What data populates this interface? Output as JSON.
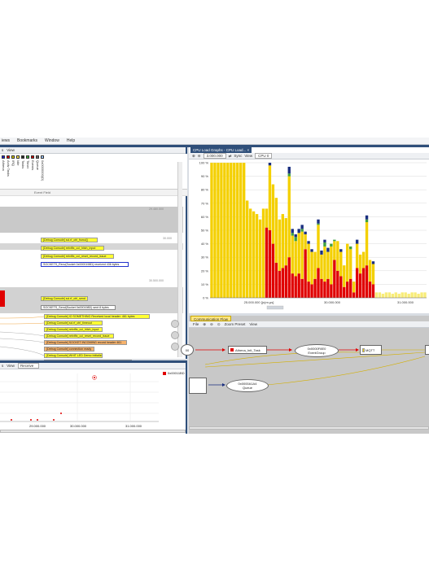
{
  "menu": [
    "iews",
    "Bookmarks",
    "Window",
    "Help"
  ],
  "trace": {
    "toolbar": [
      "s",
      "View"
    ],
    "event_field_label": "Event Field",
    "columns": [
      {
        "color": "#1f1fd6",
        "label": "Athena"
      },
      {
        "color": "#e00000",
        "label": "Activ Tasks"
      },
      {
        "color": "#d4c900",
        "label": "IRQ"
      },
      {
        "color": "#ffe64d",
        "label": "Idle"
      },
      {
        "color": "#2a2a2a",
        "label": "Tasks"
      },
      {
        "color": "#3fae3f",
        "label": "Timer"
      },
      {
        "color": "#cc0000",
        "label": "Events"
      },
      {
        "color": "#6b6b6b",
        "label": "Queue"
      },
      {
        "color": "#9ec9ff",
        "label": "0x0000000(D)"
      }
    ],
    "timestamps": [
      "29.480.500",
      "30.000",
      "30.500.000"
    ],
    "events": [
      "[Debug Console] sci.rf_ctrl_fsmcl()",
      "[Debug Console] retxtftx_cci_hitch_input",
      "[Debug Console] retxtftx_cci_reset_record_issue",
      "SOCKETS_Recv(Socket 0x0000198D) received 436 bytes",
      "[Debug Console] sci.rf_ctrl_send",
      "SOCKETS_Send(Socket 0x000198D) sent 8 bytes",
      "[Debug Console] IO SOMETHING Received local header: 461 bytes",
      "[Debug Console] sci.rf_ctrl_timeout",
      "[Debug Console] retxtftx_cci_hitch_input",
      "[Debug Console] retxtftx_cci_reset_record_issue",
      "[Debug Console] SOCKET INCOMING record header 461",
      "[Debug Console] connection ready",
      "[Debug Console] WHIT LED Demo Initialized",
      "[Debug Console] cci_fsmelt applicationcomm ackch.like(l)"
    ]
  },
  "lowerleft": {
    "toolbar": [
      "s",
      "View"
    ],
    "dropdown": "Receive",
    "legend": "0x00011BD",
    "xticks": [
      "29.000.000",
      "30.000.000",
      "31.000.000"
    ]
  },
  "cpu": {
    "tab_title": "CPU Load Graphs - CPU Load...",
    "zoom_value": "3.000.000",
    "sync_label": "Sync",
    "view_label": "View",
    "cpu_select": "CPU 0",
    "colors": {
      "red": "#e00000",
      "yellow": "#f4d000",
      "pale": "#f8ec79",
      "green": "#3fa03f",
      "navy": "#1a2f80",
      "grid": "#cfcfcf"
    }
  },
  "chart_data": {
    "type": "bar",
    "title": "",
    "xlabel": "",
    "ylabel": "",
    "ylim": [
      0,
      100
    ],
    "yticks": [
      "100 %",
      "90 %",
      "80 %",
      "70 %",
      "60 %",
      "50 %",
      "40 %",
      "30 %",
      "20 %",
      "10 %",
      "0 %"
    ],
    "xticks": [
      "25.000.000 [(s)m.μs]",
      "30.000.000",
      "31.000.000"
    ],
    "series_order": [
      "red",
      "yellow",
      "green",
      "navy"
    ],
    "bars": [
      [
        0,
        100,
        0,
        0
      ],
      [
        0,
        100,
        0,
        0
      ],
      [
        0,
        100,
        0,
        0
      ],
      [
        0,
        100,
        0,
        0
      ],
      [
        0,
        100,
        0,
        0
      ],
      [
        0,
        100,
        0,
        0
      ],
      [
        0,
        100,
        0,
        0
      ],
      [
        0,
        100,
        0,
        0
      ],
      [
        0,
        100,
        0,
        0
      ],
      [
        0,
        100,
        0,
        0
      ],
      [
        0,
        100,
        0,
        0
      ],
      [
        0,
        72,
        0,
        0
      ],
      [
        0,
        66,
        0,
        0
      ],
      [
        0,
        64,
        0,
        0
      ],
      [
        0,
        62,
        0,
        0
      ],
      [
        0,
        58,
        0,
        0
      ],
      [
        0,
        66,
        0,
        0
      ],
      [
        52,
        14,
        0,
        0
      ],
      [
        50,
        48,
        0,
        2
      ],
      [
        40,
        44,
        0,
        0
      ],
      [
        26,
        48,
        0,
        0
      ],
      [
        20,
        38,
        0,
        0
      ],
      [
        22,
        40,
        0,
        0
      ],
      [
        24,
        35,
        0,
        0
      ],
      [
        30,
        60,
        2,
        5
      ],
      [
        18,
        28,
        2,
        3
      ],
      [
        16,
        26,
        3,
        2
      ],
      [
        18,
        30,
        0,
        3
      ],
      [
        14,
        35,
        2,
        3
      ],
      [
        36,
        11,
        0,
        2
      ],
      [
        12,
        28,
        0,
        2
      ],
      [
        10,
        24,
        0,
        2
      ],
      [
        14,
        20,
        0,
        0
      ],
      [
        22,
        32,
        1,
        3
      ],
      [
        14,
        18,
        0,
        3
      ],
      [
        12,
        26,
        3,
        2
      ],
      [
        14,
        20,
        0,
        3
      ],
      [
        10,
        28,
        2,
        0
      ],
      [
        28,
        14,
        1,
        0
      ],
      [
        20,
        22,
        0,
        0
      ],
      [
        16,
        18,
        0,
        2
      ],
      [
        8,
        16,
        0,
        0
      ],
      [
        12,
        28,
        0,
        0
      ],
      [
        14,
        22,
        2,
        0
      ],
      [
        4,
        8,
        0,
        0
      ],
      [
        22,
        18,
        0,
        3
      ],
      [
        18,
        14,
        0,
        0
      ],
      [
        22,
        12,
        0,
        0
      ],
      [
        24,
        32,
        2,
        3
      ],
      [
        12,
        16,
        0,
        0
      ],
      [
        10,
        15,
        0,
        2
      ],
      [
        0,
        4,
        0,
        0
      ],
      [
        0,
        4,
        0,
        0
      ],
      [
        0,
        3,
        0,
        0
      ],
      [
        0,
        4,
        0,
        0
      ],
      [
        0,
        4,
        0,
        0
      ],
      [
        0,
        3,
        0,
        0
      ],
      [
        0,
        4,
        0,
        0
      ],
      [
        0,
        3,
        0,
        0
      ],
      [
        0,
        4,
        0,
        0
      ],
      [
        0,
        4,
        0,
        0
      ],
      [
        0,
        3,
        0,
        0
      ],
      [
        0,
        4,
        0,
        0
      ],
      [
        0,
        4,
        0,
        0
      ],
      [
        0,
        3,
        0,
        0
      ],
      [
        0,
        4,
        0,
        0
      ],
      [
        0,
        4,
        0,
        0
      ]
    ]
  },
  "flow": {
    "tab_title": "Communication Flow",
    "toolbar": [
      "File",
      "Zoom Preset",
      "View"
    ],
    "nodes": {
      "n0": "00",
      "task": "Athena_Init_Task",
      "eventgroup_id": "0x0000F8E0",
      "eventgroup_type": "EventGroup",
      "mqtt": "MQTT",
      "queue_id": "0x0000A1A4",
      "queue_type": "Queue"
    }
  }
}
